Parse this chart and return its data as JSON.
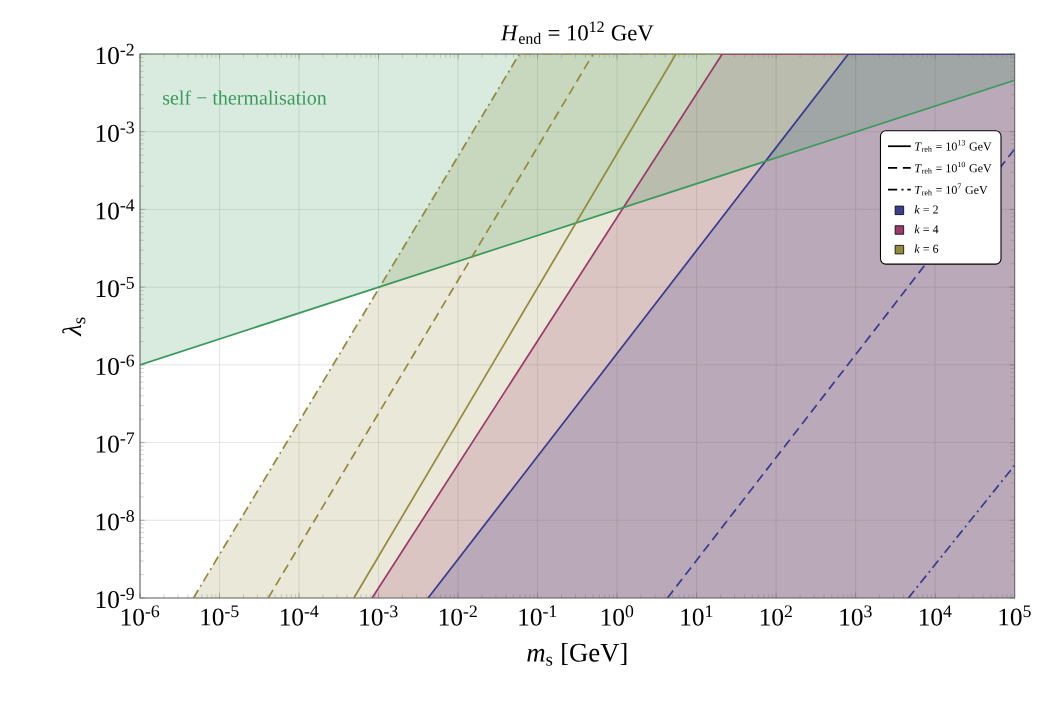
{
  "chart_data": {
    "type": "line",
    "title": "*H*$_{end}$ = 10$^{12}$ GeV",
    "xlabel": "*m*$_{s}$ [GeV]",
    "ylabel": "*λ*$_{s}$",
    "log": "xy",
    "grid": true,
    "legend": "top right",
    "xlim": [
      1e-06,
      100000.0
    ],
    "ylim": [
      1e-09,
      0.01
    ],
    "xticks": [
      {
        "value": 1e-06,
        "label": "10$^{-6}$"
      },
      {
        "value": 1e-05,
        "label": "10$^{-5}$"
      },
      {
        "value": 0.0001,
        "label": "10$^{-4}$"
      },
      {
        "value": 0.001,
        "label": "10$^{-3}$"
      },
      {
        "value": 0.01,
        "label": "10$^{-2}$"
      },
      {
        "value": 0.1,
        "label": "10$^{-1}$"
      },
      {
        "value": 1,
        "label": "10$^{0}$"
      },
      {
        "value": 10,
        "label": "10$^{1}$"
      },
      {
        "value": 100,
        "label": "10$^{2}$"
      },
      {
        "value": 1000,
        "label": "10$^{3}$"
      },
      {
        "value": 10000,
        "label": "10$^{4}$"
      },
      {
        "value": 100000,
        "label": "10$^{5}$"
      }
    ],
    "yticks": [
      {
        "value": 1e-09,
        "label": "10$^{-9}$"
      },
      {
        "value": 1e-08,
        "label": "10$^{-8}$"
      },
      {
        "value": 1e-07,
        "label": "10$^{-7}$"
      },
      {
        "value": 1e-06,
        "label": "10$^{-6}$"
      },
      {
        "value": 1e-05,
        "label": "10$^{-5}$"
      },
      {
        "value": 0.0001,
        "label": "10$^{-4}$"
      },
      {
        "value": 0.001,
        "label": "10$^{-3}$"
      },
      {
        "value": 0.01,
        "label": "10$^{-2}$"
      }
    ],
    "annotations": [
      "self − thermalisation"
    ],
    "series": [
      {
        "color": "#948a3f",
        "line_style": "dashdot",
        "x": [
          4.7e-06,
          0.059,
          100000.0
        ],
        "values": [
          1e-09,
          0.01,
          0.01
        ],
        "lower": [
          1e-09,
          1e-09,
          1e-09
        ],
        "upper": [
          1e-09,
          0.01,
          0.01
        ]
      },
      {
        "name": "*k* = 4",
        "color": "#9c3b6b",
        "line_style": "solid",
        "x": [
          0.00083,
          21,
          100000.0
        ],
        "values": [
          1e-09,
          0.01,
          0.01
        ],
        "lower": [
          1e-09,
          1e-09,
          1e-09
        ],
        "upper": [
          1e-09,
          0.01,
          0.01
        ]
      },
      {
        "name": "*k* = 2",
        "color": "#3b3b8f",
        "line_style": "solid",
        "x": [
          0.0042,
          810,
          100000.0
        ],
        "values": [
          1e-09,
          0.01,
          0.01
        ],
        "lower": [
          1e-09,
          1e-09,
          1e-09
        ],
        "upper": [
          1e-09,
          0.01,
          0.01
        ]
      },
      {
        "color": "#3a9a5c",
        "x": [
          1e-06,
          100000.0
        ],
        "values": [
          1e-06,
          0.0046
        ],
        "lower": [
          1e-06,
          0.0046
        ],
        "upper": [
          0.01,
          0.01
        ]
      },
      {
        "name": "*k* = 6",
        "color": "#948a3f",
        "line_style": "solid",
        "x": [
          0.00049,
          5.5
        ],
        "values": [
          1e-09,
          0.01
        ]
      },
      {
        "color": "#948a3f",
        "line_style": "dashed",
        "x": [
          4.1e-05,
          0.5
        ],
        "values": [
          1e-09,
          0.01
        ]
      },
      {
        "color": "#3b3b8f",
        "line_style": "dashed",
        "x": [
          4.3,
          100000.0
        ],
        "values": [
          1e-09,
          0.0006
        ]
      },
      {
        "color": "#3b3b8f",
        "line_style": "dashdot",
        "x": [
          4600.0,
          100000.0
        ],
        "values": [
          1e-09,
          5.1e-08
        ]
      },
      {
        "name": "*T*$_{reh}$ = 10$^{13}$ GeV",
        "color": "#000000",
        "line_style": "solid"
      },
      {
        "name": "*T*$_{reh}$ = 10$^{10}$ GeV",
        "color": "#000000",
        "line_style": "dashed"
      },
      {
        "name": "*T*$_{reh}$ = 10$^{7}$ GeV",
        "color": "#000000",
        "line_style": "dashdot"
      }
    ]
  }
}
